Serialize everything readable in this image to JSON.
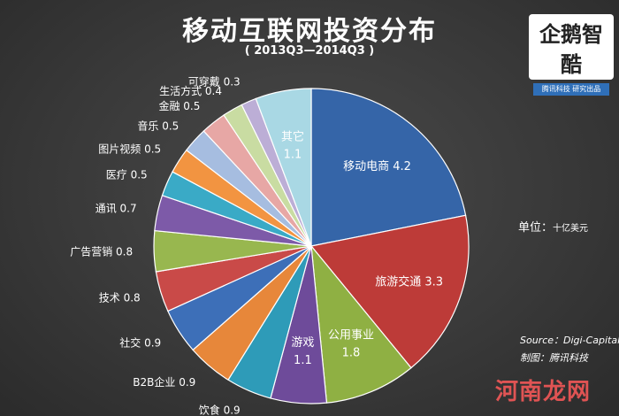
{
  "header": {
    "title": "移动互联网投资分布",
    "subtitle": "( 2013Q3—2014Q3 )"
  },
  "logo": {
    "text": "企鹅智酷",
    "band": "腾讯科技 研究出品"
  },
  "unit": {
    "label": "单位：",
    "value": "十亿美元"
  },
  "source": {
    "label": "Source：",
    "value": "Digi-Capital"
  },
  "credit": {
    "label": "制图：",
    "value": "腾讯科技"
  },
  "watermark": {
    "text": "河南龙网"
  },
  "chart_data": {
    "type": "pie",
    "title": "移动互联网投资分布",
    "subtitle": "( 2013Q3—2014Q3 )",
    "unit": "十亿美元",
    "start_angle_deg": 0,
    "direction": "clockwise",
    "slices": [
      {
        "name": "移动电商",
        "value": 4.2,
        "color": "#3565a8",
        "label_inside": true,
        "split": false
      },
      {
        "name": "旅游交通",
        "value": 3.3,
        "color": "#bd3b38",
        "label_inside": true,
        "split": false
      },
      {
        "name": "公用事业",
        "value": 1.8,
        "color": "#8fb043",
        "label_inside": true,
        "split": true
      },
      {
        "name": "游戏",
        "value": 1.1,
        "color": "#6e4b9a",
        "label_inside": true,
        "split": true
      },
      {
        "name": "饮食",
        "value": 0.9,
        "color": "#2e9bb8",
        "label_inside": false
      },
      {
        "name": "B2B企业",
        "value": 0.9,
        "color": "#e7873a",
        "label_inside": false
      },
      {
        "name": "社交",
        "value": 0.9,
        "color": "#3d6fb8",
        "label_inside": false
      },
      {
        "name": "技术",
        "value": 0.8,
        "color": "#c94a48",
        "label_inside": false
      },
      {
        "name": "广告营销",
        "value": 0.8,
        "color": "#98b74f",
        "label_inside": false
      },
      {
        "name": "通讯",
        "value": 0.7,
        "color": "#7d5aa8",
        "label_inside": false
      },
      {
        "name": "医疗",
        "value": 0.5,
        "color": "#3aaac6",
        "label_inside": false
      },
      {
        "name": "图片视频",
        "value": 0.5,
        "color": "#f29441",
        "label_inside": false
      },
      {
        "name": "音乐",
        "value": 0.5,
        "color": "#a6bde0",
        "label_inside": false
      },
      {
        "name": "金融",
        "value": 0.5,
        "color": "#e7a7a5",
        "label_inside": false
      },
      {
        "name": "生活方式",
        "value": 0.4,
        "color": "#c9dca2",
        "label_inside": false
      },
      {
        "name": "可穿戴",
        "value": 0.3,
        "color": "#bcaed6",
        "label_inside": false
      },
      {
        "name": "其它",
        "value": 1.1,
        "color": "#a9d8e4",
        "label_inside": true,
        "split": true
      }
    ]
  }
}
